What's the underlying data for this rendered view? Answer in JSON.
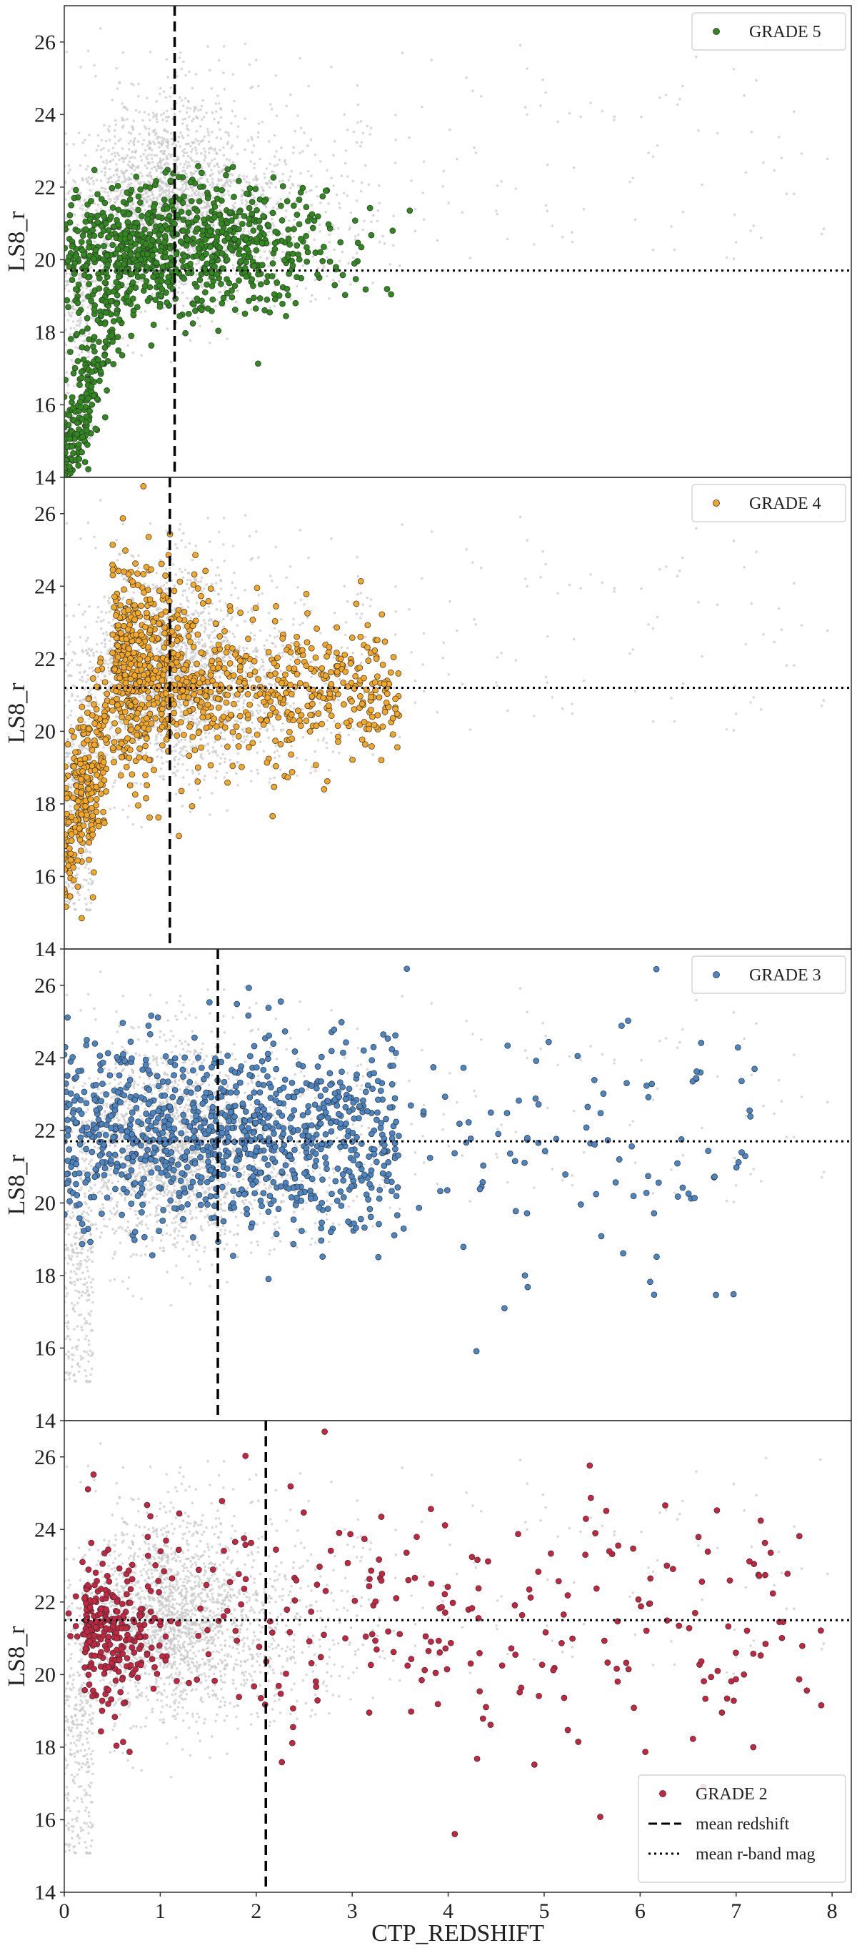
{
  "chart_data": {
    "type": "scatter",
    "layout": "4 vertically stacked panels sharing the x-axis",
    "xlabel": "CTP_REDSHIFT",
    "x_range": [
      0,
      8.2
    ],
    "x_ticks": [
      "0",
      "1",
      "2",
      "3",
      "4",
      "5",
      "6",
      "7",
      "8"
    ],
    "background_points_color": "#c8c8c8",
    "reference_line_labels": {
      "dashed": "mean redshift",
      "dotted": "mean r-band mag"
    },
    "panels": [
      {
        "series_name": "GRADE 5",
        "color": "#2f8a1c",
        "ylabel": "LS8_r",
        "y_range": [
          14,
          27
        ],
        "y_ticks": [
          "14",
          "16",
          "18",
          "20",
          "22",
          "24",
          "26"
        ],
        "mean_redshift": 1.15,
        "mean_r_band_mag": 19.7,
        "legend_position": "top-right",
        "legend_entries": [
          "GRADE 5"
        ],
        "approx_point_distribution": {
          "redshift_range": [
            0,
            4.5
          ],
          "mag_range": [
            14,
            22.5
          ],
          "peak_density_redshift": 0.9,
          "peak_density_mag": 20.3
        }
      },
      {
        "series_name": "GRADE 4",
        "color": "#f5a623",
        "ylabel": "LS8_r",
        "y_range": [
          14,
          27
        ],
        "y_ticks": [
          "14",
          "16",
          "18",
          "20",
          "22",
          "24",
          "26"
        ],
        "mean_redshift": 1.1,
        "mean_r_band_mag": 21.2,
        "legend_position": "top-right",
        "legend_entries": [
          "GRADE 4"
        ],
        "approx_point_distribution": {
          "redshift_range": [
            0,
            4.8
          ],
          "mag_range": [
            14.5,
            26.5
          ],
          "peak_density_redshift": 1.0,
          "peak_density_mag": 21.5
        }
      },
      {
        "series_name": "GRADE 3",
        "color": "#4a86c5",
        "ylabel": "LS8_r",
        "y_range": [
          14,
          27
        ],
        "y_ticks": [
          "14",
          "16",
          "18",
          "20",
          "22",
          "24",
          "26"
        ],
        "mean_redshift": 1.6,
        "mean_r_band_mag": 21.7,
        "legend_position": "top-right",
        "legend_entries": [
          "GRADE 3"
        ],
        "approx_point_distribution": {
          "redshift_range": [
            0,
            7.4
          ],
          "mag_range": [
            15,
            26.3
          ],
          "peak_density_redshift": 1.2,
          "peak_density_mag": 21.8
        }
      },
      {
        "series_name": "GRADE 2",
        "color": "#c8243f",
        "ylabel": "LS8_r",
        "y_range": [
          14,
          27
        ],
        "y_ticks": [
          "14",
          "16",
          "18",
          "20",
          "22",
          "24",
          "26"
        ],
        "mean_redshift": 2.1,
        "mean_r_band_mag": 21.5,
        "legend_position": "bottom-right",
        "legend_entries": [
          "GRADE 2",
          "mean redshift",
          "mean r-band mag"
        ],
        "approx_point_distribution": {
          "redshift_range": [
            0,
            8
          ],
          "mag_range": [
            17.5,
            27
          ],
          "peak_density_redshift": 0.6,
          "peak_density_mag": 21.3
        }
      }
    ]
  }
}
